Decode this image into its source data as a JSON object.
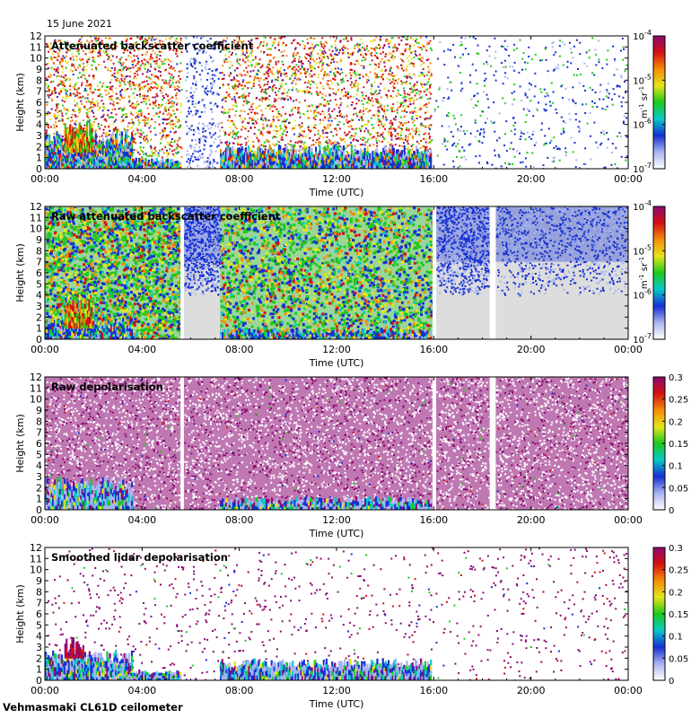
{
  "header": {
    "date": "15 June 2021"
  },
  "footer": {
    "instrument": "Vehmasmaki CL61D ceilometer"
  },
  "colors": {
    "purple": "#8b0a72",
    "red": "#d51010",
    "orange": "#f58b0a",
    "yellow": "#e6e61a",
    "green": "#1ec81e",
    "cyan": "#0ac8c8",
    "blue": "#1530d2",
    "lightblue": "#a8b4f0",
    "gap": "#dddddd",
    "white": "#ffffff"
  },
  "chart_data": [
    {
      "type": "heatmap",
      "title": "Attenuated backscatter coefficient",
      "xlabel": "Time (UTC)",
      "ylabel": "Height (km)",
      "x_ticks": [
        "00:00",
        "04:00",
        "08:00",
        "12:00",
        "16:00",
        "20:00",
        "00:00"
      ],
      "y_ticks": [
        "0",
        "1",
        "2",
        "3",
        "4",
        "5",
        "6",
        "7",
        "8",
        "9",
        "10",
        "11",
        "12"
      ],
      "xlim": [
        0,
        24
      ],
      "ylim": [
        0,
        12
      ],
      "colorbar": {
        "scale": "log",
        "range": [
          1e-07,
          0.0001
        ],
        "ticks": [
          {
            "base": "10",
            "exp": "-7"
          },
          {
            "base": "10",
            "exp": "-6"
          },
          {
            "base": "10",
            "exp": "-5"
          },
          {
            "base": "10",
            "exp": "-4"
          }
        ],
        "label": {
          "m": "m",
          "m_exp": "-1",
          "sr": " sr",
          "sr_exp": "-1"
        }
      },
      "gaps_h": [
        [
          5.7,
          7.2
        ]
      ],
      "background": "white"
    },
    {
      "type": "heatmap",
      "title": "Raw attenuated backscatter coefficient",
      "xlabel": "Time (UTC)",
      "ylabel": "Height (km)",
      "x_ticks": [
        "00:00",
        "04:00",
        "08:00",
        "12:00",
        "16:00",
        "20:00",
        "00:00"
      ],
      "y_ticks": [
        "0",
        "1",
        "2",
        "3",
        "4",
        "5",
        "6",
        "7",
        "8",
        "9",
        "10",
        "11",
        "12"
      ],
      "xlim": [
        0,
        24
      ],
      "ylim": [
        0,
        12
      ],
      "colorbar": {
        "scale": "log",
        "range": [
          1e-07,
          0.0001
        ],
        "ticks": [
          {
            "base": "10",
            "exp": "-7"
          },
          {
            "base": "10",
            "exp": "-6"
          },
          {
            "base": "10",
            "exp": "-5"
          },
          {
            "base": "10",
            "exp": "-4"
          }
        ],
        "label": {
          "m": "m",
          "m_exp": "-1",
          "sr": " sr",
          "sr_exp": "-1"
        }
      },
      "gaps_h": [
        [
          5.7,
          7.2
        ]
      ],
      "white_gaps_h": [
        [
          5.58,
          5.72
        ],
        [
          15.95,
          16.1
        ],
        [
          18.3,
          18.55
        ]
      ],
      "background": "gap"
    },
    {
      "type": "heatmap",
      "title": "Raw depolarisation",
      "xlabel": "Time (UTC)",
      "ylabel": "Height (km)",
      "x_ticks": [
        "00:00",
        "04:00",
        "08:00",
        "12:00",
        "16:00",
        "20:00",
        "00:00"
      ],
      "y_ticks": [
        "0",
        "1",
        "2",
        "3",
        "4",
        "5",
        "6",
        "7",
        "8",
        "9",
        "10",
        "11",
        "12"
      ],
      "xlim": [
        0,
        24
      ],
      "ylim": [
        0,
        12
      ],
      "colorbar": {
        "scale": "linear",
        "range": [
          0,
          0.3
        ],
        "ticks": [
          "0",
          "0.05",
          "0.1",
          "0.15",
          "0.2",
          "0.25",
          "0.3"
        ]
      },
      "white_gaps_h": [
        [
          5.58,
          5.72
        ],
        [
          15.95,
          16.1
        ],
        [
          18.3,
          18.55
        ]
      ],
      "background": "white"
    },
    {
      "type": "heatmap",
      "title": "Smoothed lidar depolarisation",
      "xlabel": "Time (UTC)",
      "ylabel": "Height (km)",
      "x_ticks": [
        "00:00",
        "04:00",
        "08:00",
        "12:00",
        "16:00",
        "20:00",
        "00:00"
      ],
      "y_ticks": [
        "0",
        "1",
        "2",
        "3",
        "4",
        "5",
        "6",
        "7",
        "8",
        "9",
        "10",
        "11",
        "12"
      ],
      "xlim": [
        0,
        24
      ],
      "ylim": [
        0,
        12
      ],
      "colorbar": {
        "scale": "linear",
        "range": [
          0,
          0.3
        ],
        "ticks": [
          "0",
          "0.05",
          "0.1",
          "0.15",
          "0.2",
          "0.25",
          "0.3"
        ]
      },
      "background": "white"
    }
  ]
}
